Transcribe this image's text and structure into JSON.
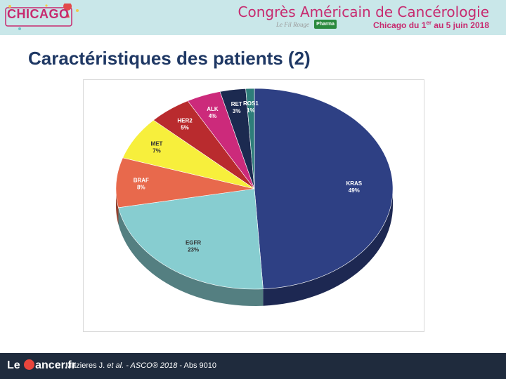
{
  "header": {
    "logo_text": "CHICAGO",
    "congress_title": "Congrès Américain de Cancérologie",
    "congress_subtitle_pre": "Chicago du 1",
    "congress_subtitle_sup": "er",
    "congress_subtitle_post": " au 5 juin 2018",
    "fil_rouge": "Le Fil Rouge",
    "pharma_badge": "Pharma"
  },
  "slide": {
    "title": "Caractéristiques des patients (2)"
  },
  "chart_data": {
    "type": "pie",
    "title": "",
    "categories": [
      "KRAS",
      "EGFR",
      "BRAF",
      "MET",
      "HER2",
      "ALK",
      "RET",
      "ROS1"
    ],
    "values": [
      49,
      23,
      8,
      7,
      5,
      4,
      3,
      1
    ],
    "value_labels": [
      "49%",
      "23%",
      "8%",
      "7%",
      "5%",
      "4%",
      "3%",
      "1%"
    ],
    "colors": [
      "#2e4084",
      "#87cdd0",
      "#e8694c",
      "#f7ef3c",
      "#b92b2e",
      "#cc2a7b",
      "#1c2a50",
      "#2e7d7a"
    ],
    "legend": "none",
    "style": "3d"
  },
  "footer": {
    "logo_left": "Le ",
    "logo_right": "ancer.fr",
    "ref_authors": "Mazieres J. ",
    "ref_etal": "et al.",
    "ref_conf": " - ASCO® 2018",
    "ref_abs": " - Abs 9010"
  }
}
